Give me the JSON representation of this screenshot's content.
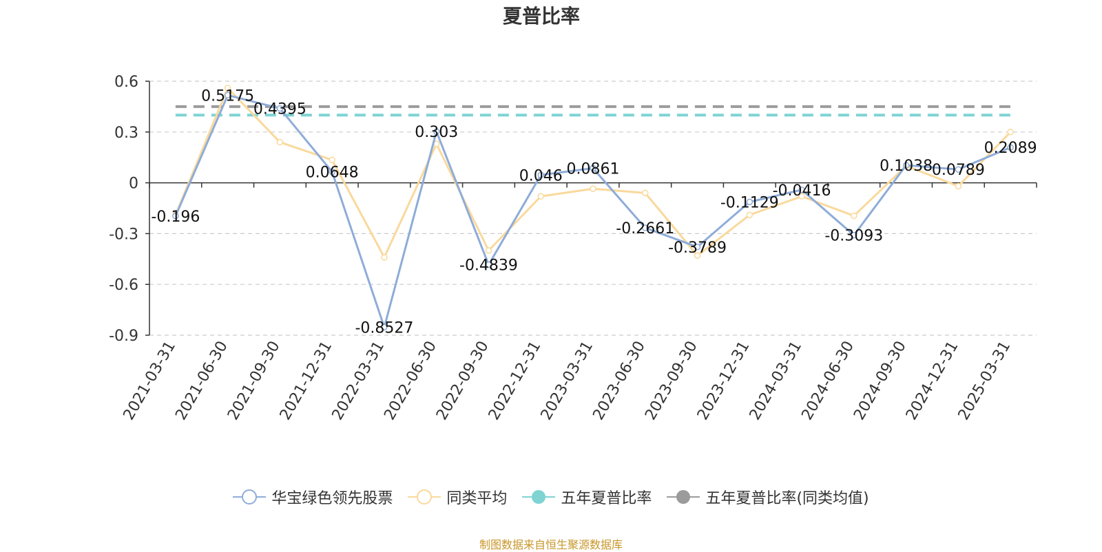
{
  "chart_data": {
    "type": "line",
    "title": "夏普比率",
    "categories": [
      "2021-03-31",
      "2021-06-30",
      "2021-09-30",
      "2021-12-31",
      "2022-03-31",
      "2022-06-30",
      "2022-09-30",
      "2022-12-31",
      "2023-03-31",
      "2023-06-30",
      "2023-09-30",
      "2023-12-31",
      "2024-03-31",
      "2024-06-30",
      "2024-09-30",
      "2024-12-31",
      "2025-03-31"
    ],
    "ylim": [
      -0.9,
      0.6
    ],
    "yticks": [
      "0.6",
      "0.3",
      "0",
      "-0.3",
      "-0.6",
      "-0.9"
    ],
    "ytick_values": [
      0.6,
      0.3,
      0,
      -0.3,
      -0.6,
      -0.9
    ],
    "grid": true,
    "legend_position": "bottom",
    "series": [
      {
        "name": "华宝绿色领先股票",
        "color": "#8eacd8",
        "values": [
          -0.196,
          0.5175,
          0.4395,
          0.0648,
          -0.8527,
          0.303,
          -0.4839,
          0.046,
          0.0861,
          -0.2661,
          -0.3789,
          -0.1129,
          -0.0416,
          -0.3093,
          0.1038,
          0.0789,
          0.2089
        ],
        "labels": [
          "-0.196",
          "0.5175",
          "0.4395",
          "0.0648",
          "-0.8527",
          "0.303",
          "-0.4839",
          "0.046",
          "0.0861",
          "-0.2661",
          "-0.3789",
          "-0.1129",
          "-0.0416",
          "-0.3093",
          "0.1038",
          "0.0789",
          "0.2089"
        ]
      },
      {
        "name": "同类平均",
        "color": "#f9d99c",
        "values": [
          -0.19,
          0.56,
          0.24,
          0.135,
          -0.44,
          0.23,
          -0.4,
          -0.08,
          -0.035,
          -0.06,
          -0.43,
          -0.19,
          -0.08,
          -0.195,
          0.1,
          -0.02,
          0.3
        ]
      }
    ],
    "reference_lines": [
      {
        "name": "五年夏普比率",
        "color": "#7fd3d3",
        "value": 0.4
      },
      {
        "name": "五年夏普比率(同类均值)",
        "color": "#9b9b9b",
        "value": 0.45
      }
    ]
  },
  "legend": [
    {
      "name": "华宝绿色领先股票",
      "color": "#8eacd8",
      "icon": "hollow-circle-line"
    },
    {
      "name": "同类平均",
      "color": "#f9d99c",
      "icon": "hollow-circle-line"
    },
    {
      "name": "五年夏普比率",
      "color": "#7fd3d3",
      "icon": "filled-circle-line"
    },
    {
      "name": "五年夏普比率(同类均值)",
      "color": "#9b9b9b",
      "icon": "filled-circle-line"
    }
  ],
  "source_text": "制图数据来自恒生聚源数据库"
}
